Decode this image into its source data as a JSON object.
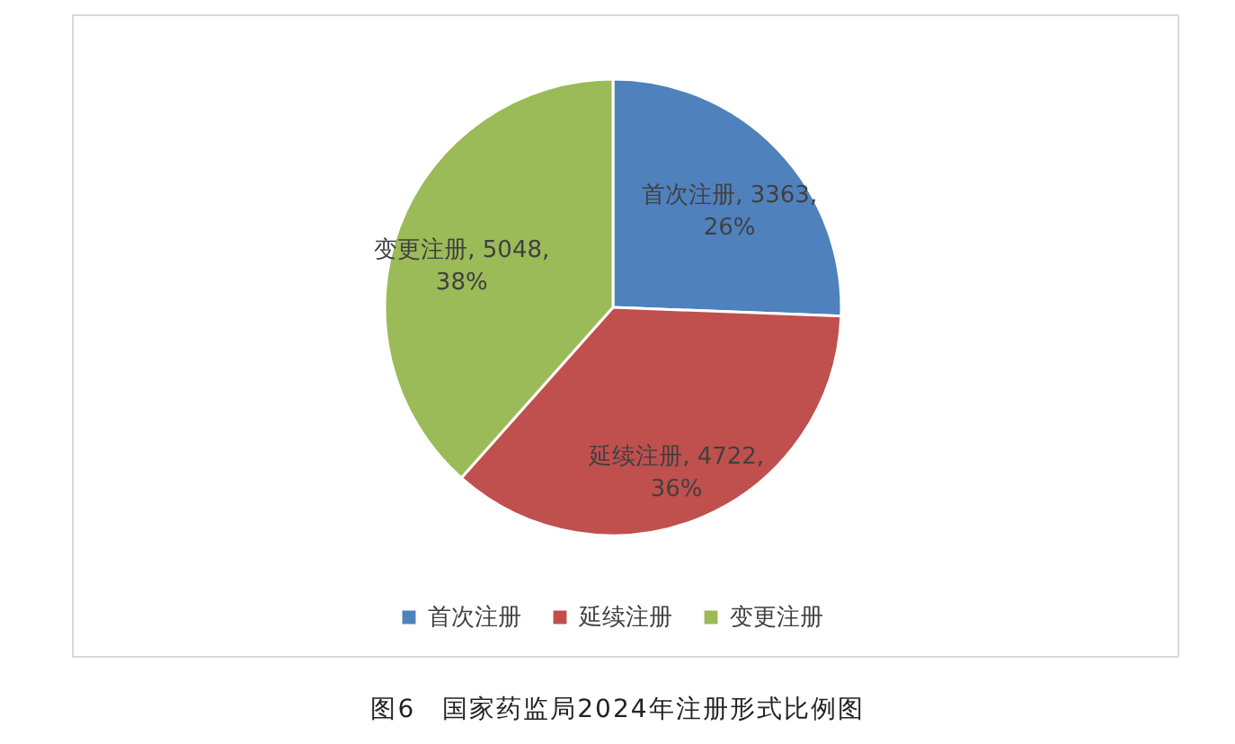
{
  "chart_data": {
    "type": "pie",
    "title": "图6　国家药监局2024年注册形式比例图",
    "categories": [
      "首次注册",
      "延续注册",
      "变更注册"
    ],
    "values": [
      3363,
      4722,
      5048
    ],
    "colors": [
      "#4f81bd",
      "#c0504d",
      "#9bbb59"
    ],
    "value_labels": [
      "首次注册, 3363,\n26%",
      "延续注册, 4722,\n36%",
      "变更注册, 5048,\n38%"
    ],
    "legend": "bottom"
  }
}
